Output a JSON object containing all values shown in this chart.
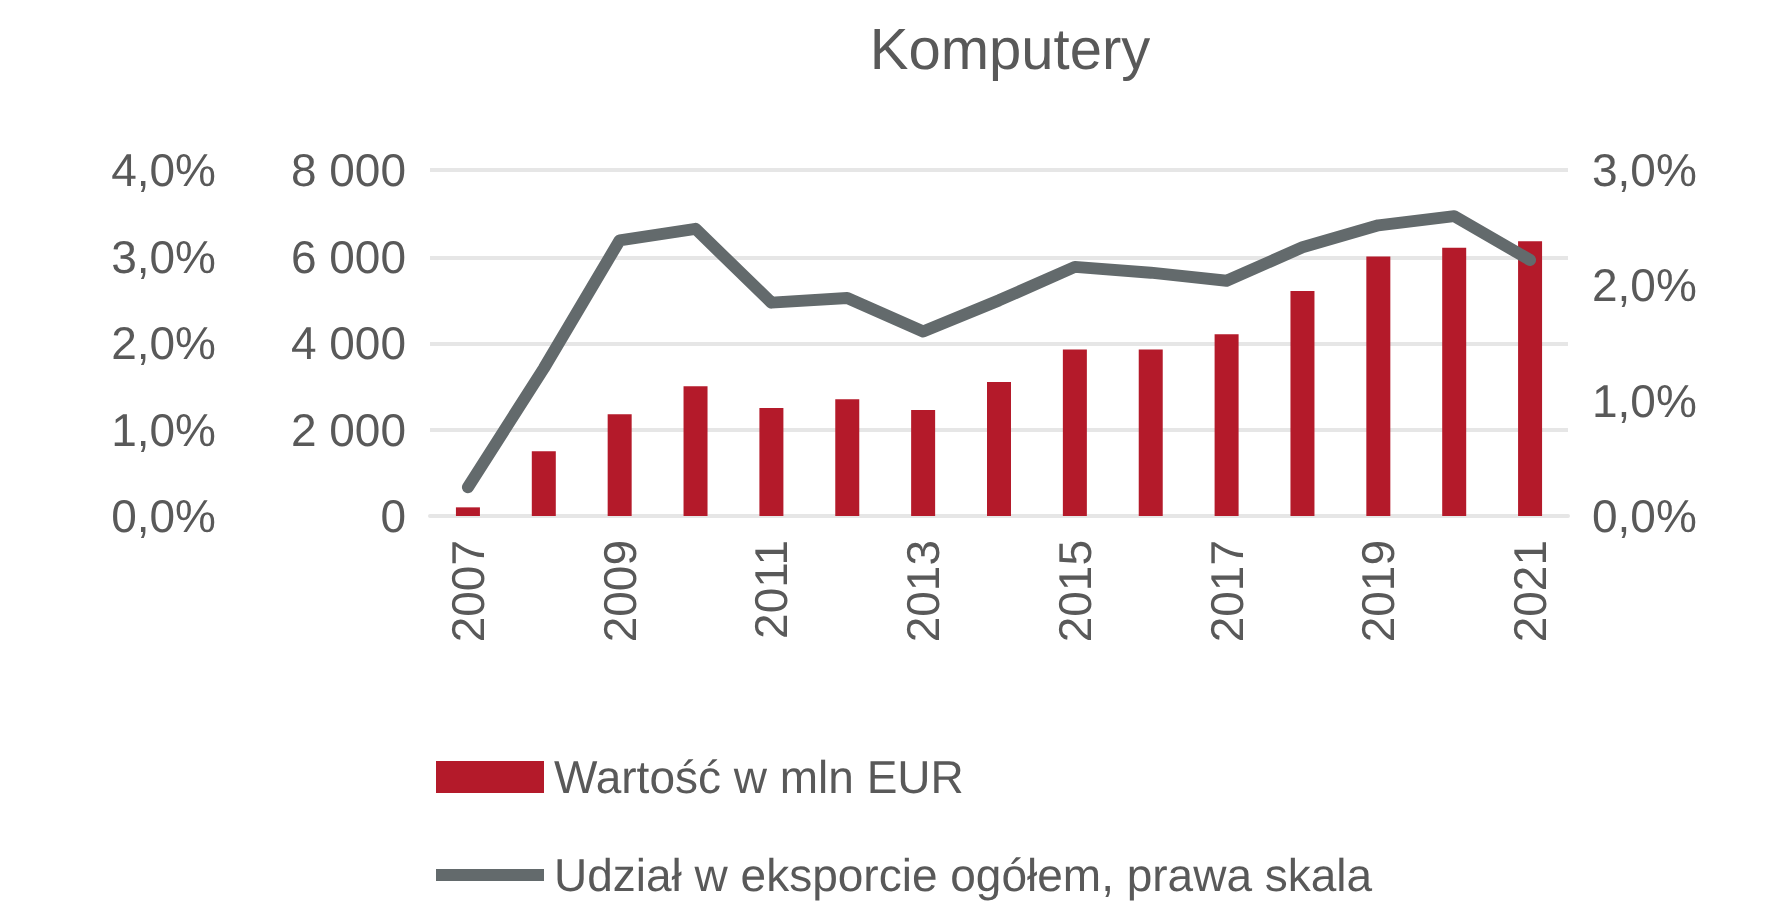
{
  "chart_data": {
    "type": "bar",
    "title": "Komputery",
    "categories": [
      "2007",
      null,
      "2009",
      null,
      "2011",
      null,
      "2013",
      null,
      "2015",
      null,
      "2017",
      null,
      "2019",
      null,
      "2021"
    ],
    "series": [
      {
        "name": "Wartość w mln EUR",
        "color": "#b41a2a",
        "values": [
          200,
          1500,
          2350,
          3000,
          2500,
          2700,
          2450,
          3100,
          3850,
          3850,
          4200,
          5200,
          6000,
          6200,
          6350
        ]
      },
      {
        "name": "Udział w eksporcie ogółem, prawa skala",
        "type": "line",
        "axis": "y2",
        "color": "#636a6c",
        "values": [
          0.25,
          1.28,
          2.39,
          2.49,
          1.85,
          1.89,
          1.6,
          1.87,
          2.16,
          2.11,
          2.04,
          2.33,
          2.52,
          2.6,
          2.22
        ]
      }
    ],
    "ylim": [
      0,
      8000
    ],
    "yticks": [
      {
        "value": 0,
        "label": "0"
      },
      {
        "value": 2000,
        "label": "2 000"
      },
      {
        "value": 4000,
        "label": "4 000"
      },
      {
        "value": 6000,
        "label": "6 000"
      },
      {
        "value": 8000,
        "label": "8 000"
      }
    ],
    "y2lim": [
      0,
      3
    ],
    "y2ticks": [
      {
        "value": 0,
        "label": "0,0%"
      },
      {
        "value": 1,
        "label": "1,0%"
      },
      {
        "value": 2,
        "label": "2,0%"
      },
      {
        "value": 3,
        "label": "3,0%"
      }
    ],
    "y3lim": [
      0,
      4
    ],
    "y3ticks": [
      {
        "value": 0,
        "label": "0,0%"
      },
      {
        "value": 1,
        "label": "1,0%"
      },
      {
        "value": 2,
        "label": "2,0%"
      },
      {
        "value": 3,
        "label": "3,0%"
      },
      {
        "value": 4,
        "label": "4,0%"
      }
    ],
    "grid": "y",
    "legend": "bottom",
    "marker": "none"
  }
}
